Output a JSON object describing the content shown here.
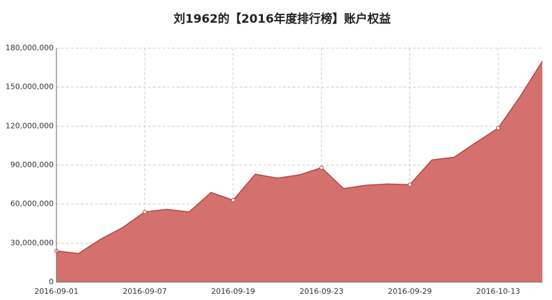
{
  "chart_data": {
    "type": "area",
    "title": "刘1962的【2016年度排行榜】账户权益",
    "categories": [
      "2016-09-01",
      null,
      null,
      null,
      "2016-09-07",
      null,
      null,
      null,
      "2016-09-19",
      null,
      null,
      null,
      "2016-09-23",
      null,
      null,
      null,
      "2016-09-29",
      null,
      null,
      null,
      "2016-10-13",
      null,
      null
    ],
    "values": [
      24000000,
      22000000,
      33000000,
      42000000,
      54000000,
      56000000,
      54000000,
      69000000,
      63000000,
      83000000,
      80000000,
      82500000,
      88000000,
      72000000,
      74500000,
      75500000,
      75000000,
      94000000,
      96000000,
      107500000,
      118500000,
      143000000,
      170000000
    ],
    "color": "#d4716f",
    "line_color": "#b5443f",
    "ylim": [
      0,
      180000000
    ],
    "yticks": [
      0,
      {
        "value": 30000000,
        "label": "30,000,000"
      },
      {
        "value": 60000000,
        "label": "60,000,000"
      },
      {
        "value": 90000000,
        "label": "90,000,000"
      },
      {
        "value": 120000000,
        "label": "120,000,000"
      },
      {
        "value": 150000000,
        "label": "150,000,000"
      },
      {
        "value": 180000000,
        "label": "180,000,000"
      }
    ],
    "grid": true
  }
}
